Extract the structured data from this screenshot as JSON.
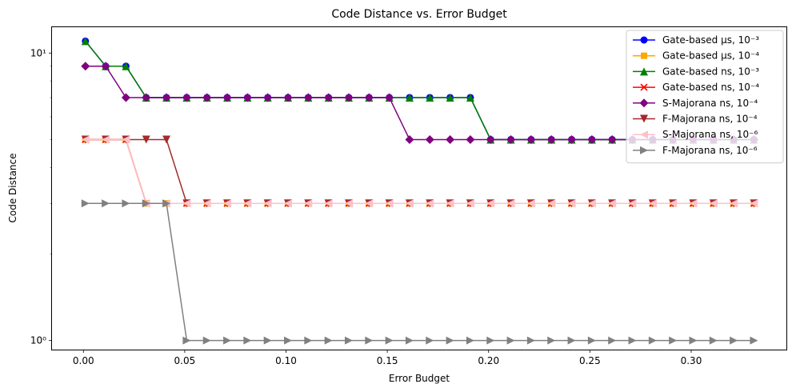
{
  "chart_data": {
    "type": "line",
    "title": "Code Distance vs. Error Budget",
    "xlabel": "Error Budget",
    "ylabel": "Code Distance",
    "yscale": "log",
    "xlim": [
      -0.0155,
      0.347
    ],
    "ylim": [
      0.93,
      12.3
    ],
    "xticks": [
      0.0,
      0.05,
      0.1,
      0.15,
      0.2,
      0.25,
      0.3
    ],
    "xtick_labels": [
      "0.00",
      "0.05",
      "0.10",
      "0.15",
      "0.20",
      "0.25",
      "0.30"
    ],
    "yticks": [
      1,
      10
    ],
    "ytick_labels": [
      "10⁰",
      "10¹"
    ],
    "legend_position": "top-right",
    "grid": false,
    "x": [
      0.001,
      0.011,
      0.021,
      0.031,
      0.041,
      0.051,
      0.061,
      0.071,
      0.081,
      0.091,
      0.101,
      0.111,
      0.121,
      0.131,
      0.141,
      0.151,
      0.161,
      0.171,
      0.181,
      0.191,
      0.201,
      0.211,
      0.221,
      0.231,
      0.241,
      0.251,
      0.261,
      0.271,
      0.281,
      0.291,
      0.301,
      0.311,
      0.321,
      0.331
    ],
    "series": [
      {
        "name": "Gate-based μs, 10⁻³",
        "color": "#0000ff",
        "marker": "circle",
        "values": [
          11,
          9,
          9,
          7,
          7,
          7,
          7,
          7,
          7,
          7,
          7,
          7,
          7,
          7,
          7,
          7,
          7,
          7,
          7,
          7,
          5,
          5,
          5,
          5,
          5,
          5,
          5,
          5,
          5,
          5,
          5,
          5,
          5,
          5
        ]
      },
      {
        "name": "Gate-based μs, 10⁻⁴",
        "color": "#ffa500",
        "marker": "square",
        "values": [
          5,
          5,
          5,
          3,
          3,
          3,
          3,
          3,
          3,
          3,
          3,
          3,
          3,
          3,
          3,
          3,
          3,
          3,
          3,
          3,
          3,
          3,
          3,
          3,
          3,
          3,
          3,
          3,
          3,
          3,
          3,
          3,
          3,
          3
        ]
      },
      {
        "name": "Gate-based ns, 10⁻³",
        "color": "#008000",
        "marker": "triangle-up",
        "values": [
          11,
          9,
          9,
          7,
          7,
          7,
          7,
          7,
          7,
          7,
          7,
          7,
          7,
          7,
          7,
          7,
          7,
          7,
          7,
          7,
          5,
          5,
          5,
          5,
          5,
          5,
          5,
          5,
          5,
          5,
          5,
          5,
          5,
          5
        ]
      },
      {
        "name": "Gate-based ns, 10⁻⁴",
        "color": "#ff0000",
        "marker": "x",
        "values": [
          5,
          5,
          5,
          3,
          3,
          3,
          3,
          3,
          3,
          3,
          3,
          3,
          3,
          3,
          3,
          3,
          3,
          3,
          3,
          3,
          3,
          3,
          3,
          3,
          3,
          3,
          3,
          3,
          3,
          3,
          3,
          3,
          3,
          3
        ]
      },
      {
        "name": "S-Majorana ns, 10⁻⁴",
        "color": "#800080",
        "marker": "diamond",
        "values": [
          9,
          9,
          7,
          7,
          7,
          7,
          7,
          7,
          7,
          7,
          7,
          7,
          7,
          7,
          7,
          7,
          5,
          5,
          5,
          5,
          5,
          5,
          5,
          5,
          5,
          5,
          5,
          5,
          5,
          5,
          5,
          5,
          5,
          5
        ]
      },
      {
        "name": "F-Majorana ns, 10⁻⁴",
        "color": "#a52a2a",
        "marker": "triangle-down",
        "values": [
          5,
          5,
          5,
          5,
          5,
          3,
          3,
          3,
          3,
          3,
          3,
          3,
          3,
          3,
          3,
          3,
          3,
          3,
          3,
          3,
          3,
          3,
          3,
          3,
          3,
          3,
          3,
          3,
          3,
          3,
          3,
          3,
          3,
          3
        ]
      },
      {
        "name": "S-Majorana ns, 10⁻⁶",
        "color": "#ffc0cb",
        "marker": "triangle-left",
        "values": [
          5,
          5,
          5,
          3,
          3,
          3,
          3,
          3,
          3,
          3,
          3,
          3,
          3,
          3,
          3,
          3,
          3,
          3,
          3,
          3,
          3,
          3,
          3,
          3,
          3,
          3,
          3,
          3,
          3,
          3,
          3,
          3,
          3,
          3
        ]
      },
      {
        "name": "F-Majorana ns, 10⁻⁶",
        "color": "#808080",
        "marker": "triangle-right",
        "values": [
          3,
          3,
          3,
          3,
          3,
          1,
          1,
          1,
          1,
          1,
          1,
          1,
          1,
          1,
          1,
          1,
          1,
          1,
          1,
          1,
          1,
          1,
          1,
          1,
          1,
          1,
          1,
          1,
          1,
          1,
          1,
          1,
          1,
          1
        ]
      }
    ]
  }
}
